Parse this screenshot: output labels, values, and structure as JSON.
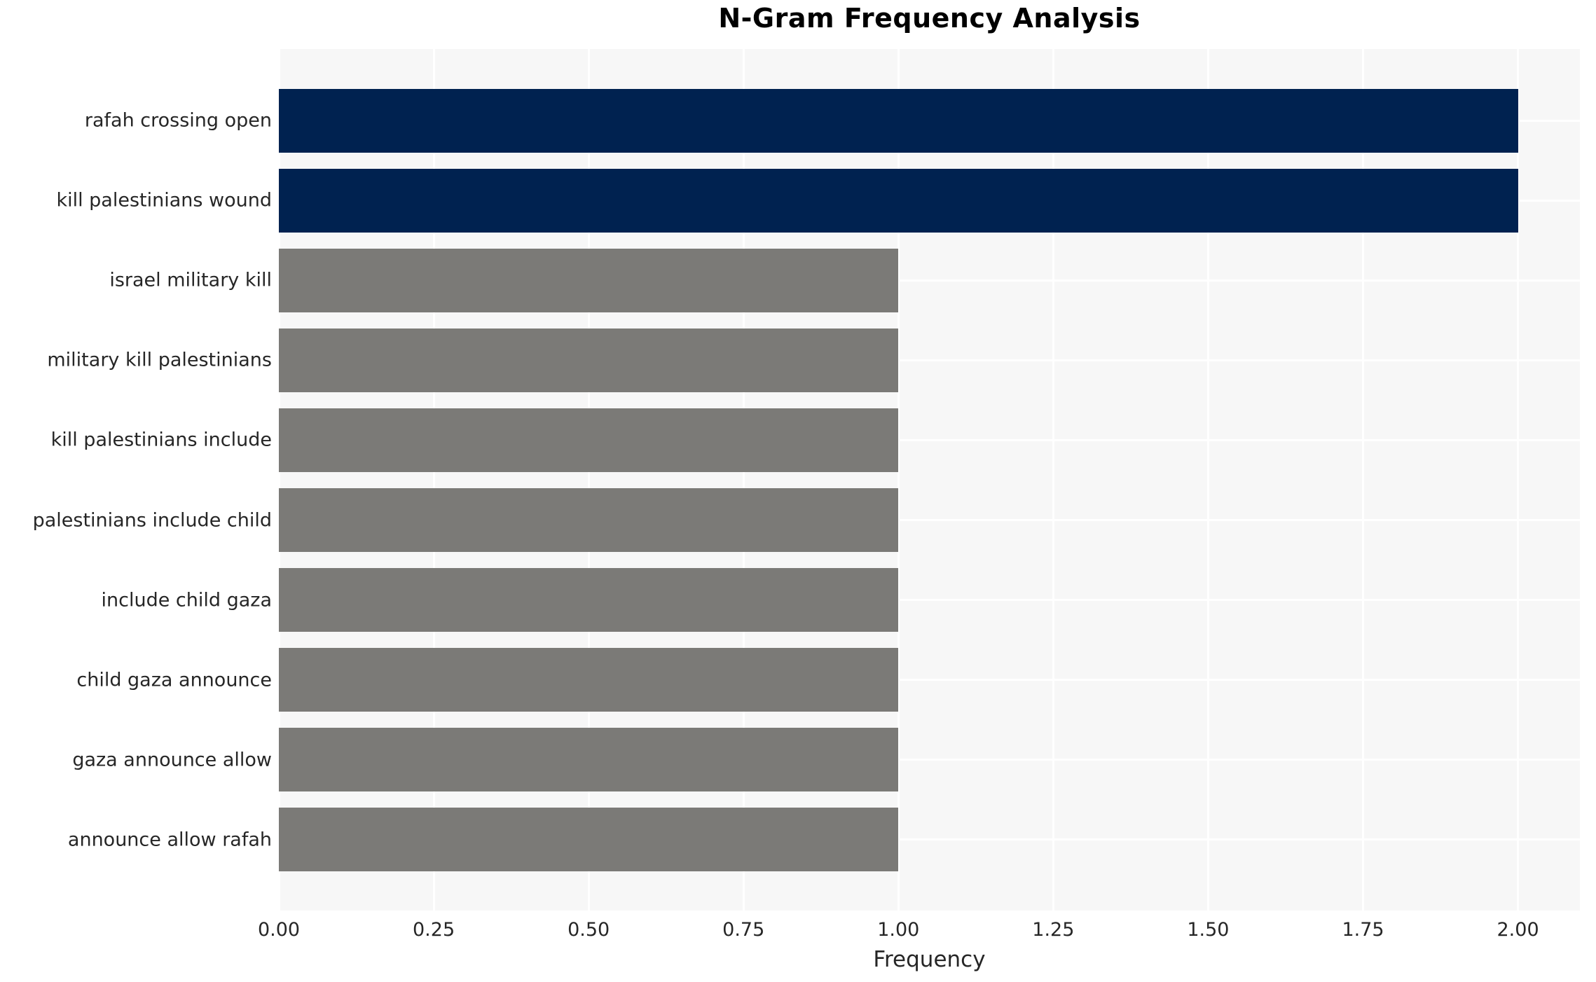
{
  "chart_data": {
    "type": "bar",
    "orientation": "horizontal",
    "title": "N-Gram Frequency Analysis",
    "xlabel": "Frequency",
    "ylabel": "",
    "categories": [
      "rafah crossing open",
      "kill palestinians wound",
      "israel military kill",
      "military kill palestinians",
      "kill palestinians include",
      "palestinians include child",
      "include child gaza",
      "child gaza announce",
      "gaza announce allow",
      "announce allow rafah"
    ],
    "values": [
      2,
      2,
      1,
      1,
      1,
      1,
      1,
      1,
      1,
      1
    ],
    "bar_colors": [
      "#002250",
      "#002250",
      "#7b7a77",
      "#7b7a77",
      "#7b7a77",
      "#7b7a77",
      "#7b7a77",
      "#7b7a77",
      "#7b7a77",
      "#7b7a77"
    ],
    "xlim": [
      0,
      2.1
    ],
    "xticks": [
      0,
      0.25,
      0.5,
      0.75,
      1,
      1.25,
      1.5,
      1.75,
      2
    ],
    "xtick_labels": [
      "0.00",
      "0.25",
      "0.50",
      "0.75",
      "1.00",
      "1.25",
      "1.50",
      "1.75",
      "2.00"
    ],
    "grid": true,
    "legend": false,
    "colors": {
      "highlight": "#002250",
      "default": "#7b7a77",
      "plot_background": "#f7f7f7",
      "gridline": "#ffffff",
      "text": "#262626",
      "title_text": "#000000"
    }
  }
}
